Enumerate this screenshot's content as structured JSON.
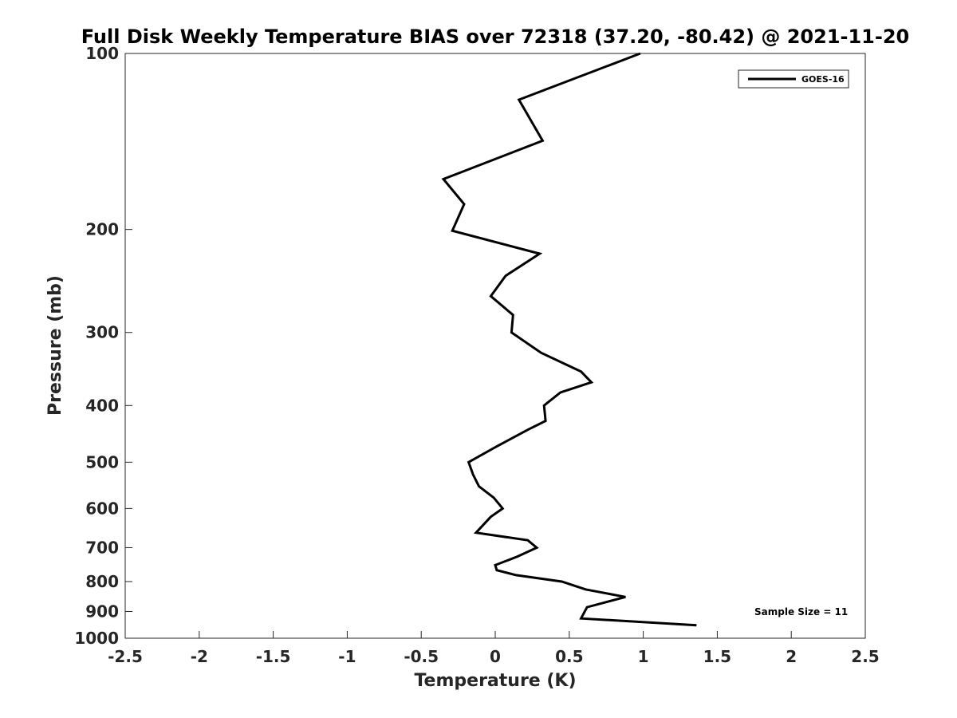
{
  "chart_data": {
    "type": "line",
    "title": "Full Disk Weekly Temperature BIAS over 72318 (37.20, -80.42) @ 2021-11-20",
    "xlabel": "Temperature (K)",
    "ylabel": "Pressure (mb)",
    "xlim": [
      -2.5,
      2.5
    ],
    "ylim": [
      100,
      1000
    ],
    "y_scale": "log",
    "y_direction": "reversed",
    "x_ticks": [
      "-2.5",
      "-2",
      "-1.5",
      "-1",
      "-0.5",
      "0",
      "0.5",
      "1",
      "1.5",
      "2",
      "2.5"
    ],
    "y_ticks": [
      "100",
      "200",
      "300",
      "400",
      "500",
      "600",
      "700",
      "800",
      "900",
      "1000"
    ],
    "grid": false,
    "legend_position": "top-right",
    "series": [
      {
        "name": "GOES-16",
        "color": "#000000",
        "points": [
          {
            "x": 0.98,
            "p": 100
          },
          {
            "x": 0.16,
            "p": 120
          },
          {
            "x": 0.32,
            "p": 141
          },
          {
            "x": -0.35,
            "p": 164
          },
          {
            "x": -0.21,
            "p": 181
          },
          {
            "x": -0.29,
            "p": 201
          },
          {
            "x": 0.3,
            "p": 220
          },
          {
            "x": 0.07,
            "p": 240
          },
          {
            "x": -0.03,
            "p": 260
          },
          {
            "x": 0.12,
            "p": 280
          },
          {
            "x": 0.11,
            "p": 300
          },
          {
            "x": 0.31,
            "p": 325
          },
          {
            "x": 0.58,
            "p": 350
          },
          {
            "x": 0.65,
            "p": 365
          },
          {
            "x": 0.44,
            "p": 380
          },
          {
            "x": 0.33,
            "p": 400
          },
          {
            "x": 0.34,
            "p": 425
          },
          {
            "x": 0.22,
            "p": 440
          },
          {
            "x": 0.01,
            "p": 470
          },
          {
            "x": -0.18,
            "p": 500
          },
          {
            "x": -0.15,
            "p": 525
          },
          {
            "x": -0.11,
            "p": 550
          },
          {
            "x": -0.01,
            "p": 575
          },
          {
            "x": 0.05,
            "p": 600
          },
          {
            "x": -0.03,
            "p": 620
          },
          {
            "x": -0.13,
            "p": 660
          },
          {
            "x": 0.22,
            "p": 680
          },
          {
            "x": 0.28,
            "p": 700
          },
          {
            "x": 0.15,
            "p": 725
          },
          {
            "x": 0.0,
            "p": 750
          },
          {
            "x": 0.01,
            "p": 765
          },
          {
            "x": 0.14,
            "p": 780
          },
          {
            "x": 0.45,
            "p": 800
          },
          {
            "x": 0.61,
            "p": 825
          },
          {
            "x": 0.88,
            "p": 850
          },
          {
            "x": 0.62,
            "p": 885
          },
          {
            "x": 0.58,
            "p": 925
          },
          {
            "x": 1.36,
            "p": 950
          }
        ]
      }
    ],
    "annotation": "Sample Size = 11"
  }
}
